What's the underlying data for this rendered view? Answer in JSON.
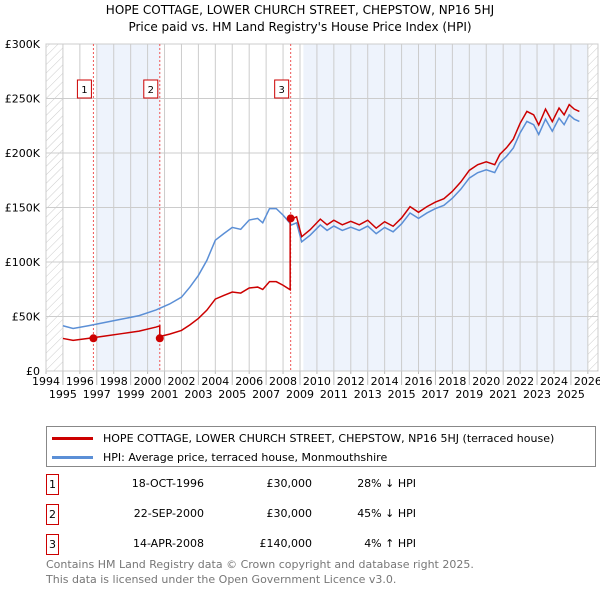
{
  "title": "HOPE COTTAGE, LOWER CHURCH STREET, CHEPSTOW, NP16 5HJ",
  "subtitle": "Price paid vs. HM Land Registry's House Price Index (HPI)",
  "chart_data": {
    "type": "line",
    "xlim": [
      1994,
      2026.6
    ],
    "ylim": [
      0,
      300000
    ],
    "x_ticks": [
      1994,
      1995,
      1996,
      1997,
      1998,
      1999,
      2000,
      2001,
      2002,
      2003,
      2004,
      2005,
      2006,
      2007,
      2008,
      2009,
      2010,
      2011,
      2012,
      2013,
      2014,
      2015,
      2016,
      2017,
      2018,
      2019,
      2020,
      2021,
      2022,
      2023,
      2024,
      2025,
      2026
    ],
    "y_ticks": [
      0,
      50000,
      100000,
      150000,
      200000,
      250000,
      300000
    ],
    "y_tick_labels": [
      "£0",
      "£50K",
      "£100K",
      "£150K",
      "£200K",
      "£250K",
      "£300K"
    ],
    "grid": true,
    "shaded_periods": [
      [
        1997.0,
        2000.75
      ],
      [
        2009.2,
        2026
      ]
    ],
    "hatched_periods": [
      [
        1994,
        1995
      ],
      [
        2026,
        2026.6
      ]
    ],
    "series": [
      {
        "name": "HOPE COTTAGE, LOWER CHURCH STREET, CHEPSTOW, NP16 5HJ (terraced house)",
        "color": "#cc0000",
        "derived_from_hpi": true,
        "segments": [
          {
            "from": 1995,
            "to": 2000.72,
            "hpi_ratio": 0.72
          },
          {
            "from": 2000.72,
            "to": 2008.42,
            "hpi_ratio": 0.55
          },
          {
            "from": 2008.42,
            "to": 2025.5,
            "hpi_ratio": 1.04
          }
        ]
      },
      {
        "name": "HPI: Average price, terraced house, Monmouthshire",
        "color": "#5b8fd6",
        "points": [
          [
            1995.0,
            41.5
          ],
          [
            1995.6,
            39
          ],
          [
            1996.5,
            41.5
          ],
          [
            1997.5,
            44.6
          ],
          [
            1998.5,
            47.7
          ],
          [
            1999.5,
            50.8
          ],
          [
            2000.5,
            56
          ],
          [
            2001.3,
            61.5
          ],
          [
            2002.0,
            67.7
          ],
          [
            2002.5,
            77
          ],
          [
            2003.0,
            87.7
          ],
          [
            2003.5,
            101.5
          ],
          [
            2004.0,
            120
          ],
          [
            2004.5,
            126
          ],
          [
            2005.0,
            131.7
          ],
          [
            2005.5,
            130
          ],
          [
            2006.0,
            138.5
          ],
          [
            2006.5,
            140
          ],
          [
            2006.8,
            136
          ],
          [
            2007.2,
            149
          ],
          [
            2007.6,
            149
          ],
          [
            2008.0,
            143
          ],
          [
            2008.5,
            134
          ],
          [
            2008.8,
            136
          ],
          [
            2009.1,
            118.5
          ],
          [
            2009.6,
            124.6
          ],
          [
            2010.2,
            134
          ],
          [
            2010.6,
            129
          ],
          [
            2011.0,
            133
          ],
          [
            2011.5,
            129
          ],
          [
            2012.0,
            132
          ],
          [
            2012.5,
            129
          ],
          [
            2013.0,
            133
          ],
          [
            2013.5,
            126
          ],
          [
            2014.0,
            131.7
          ],
          [
            2014.5,
            127.7
          ],
          [
            2015.0,
            135
          ],
          [
            2015.5,
            145
          ],
          [
            2016.0,
            140
          ],
          [
            2016.5,
            145
          ],
          [
            2017.0,
            149
          ],
          [
            2017.5,
            152
          ],
          [
            2018.0,
            158.5
          ],
          [
            2018.5,
            166.8
          ],
          [
            2019.0,
            177
          ],
          [
            2019.5,
            182
          ],
          [
            2020.0,
            184.6
          ],
          [
            2020.5,
            182
          ],
          [
            2020.8,
            191
          ],
          [
            2021.2,
            197
          ],
          [
            2021.6,
            204.6
          ],
          [
            2022.0,
            218.5
          ],
          [
            2022.4,
            229
          ],
          [
            2022.8,
            226
          ],
          [
            2023.1,
            217
          ],
          [
            2023.5,
            231
          ],
          [
            2023.9,
            220
          ],
          [
            2024.3,
            232
          ],
          [
            2024.6,
            226
          ],
          [
            2024.9,
            235
          ],
          [
            2025.2,
            231
          ],
          [
            2025.5,
            229
          ]
        ],
        "units": "thousand GBP"
      }
    ],
    "sales": [
      {
        "label": "1",
        "x": 1996.8,
        "y": 30000
      },
      {
        "label": "2",
        "x": 2000.72,
        "y": 30000
      },
      {
        "label": "3",
        "x": 2008.45,
        "y": 140000
      }
    ]
  },
  "legend": {
    "property": "HOPE COTTAGE, LOWER CHURCH STREET, CHEPSTOW, NP16 5HJ (terraced house)",
    "hpi": "HPI: Average price, terraced house, Monmouthshire"
  },
  "transactions": [
    {
      "num": "1",
      "date": "18-OCT-1996",
      "price": "£30,000",
      "hpi": "28% ↓ HPI"
    },
    {
      "num": "2",
      "date": "22-SEP-2000",
      "price": "£30,000",
      "hpi": "45% ↓ HPI"
    },
    {
      "num": "3",
      "date": "14-APR-2008",
      "price": "£140,000",
      "hpi": "4% ↑ HPI"
    }
  ],
  "footer": {
    "line1": "Contains HM Land Registry data © Crown copyright and database right 2025.",
    "line2": "This data is licensed under the Open Government Licence v3.0."
  }
}
